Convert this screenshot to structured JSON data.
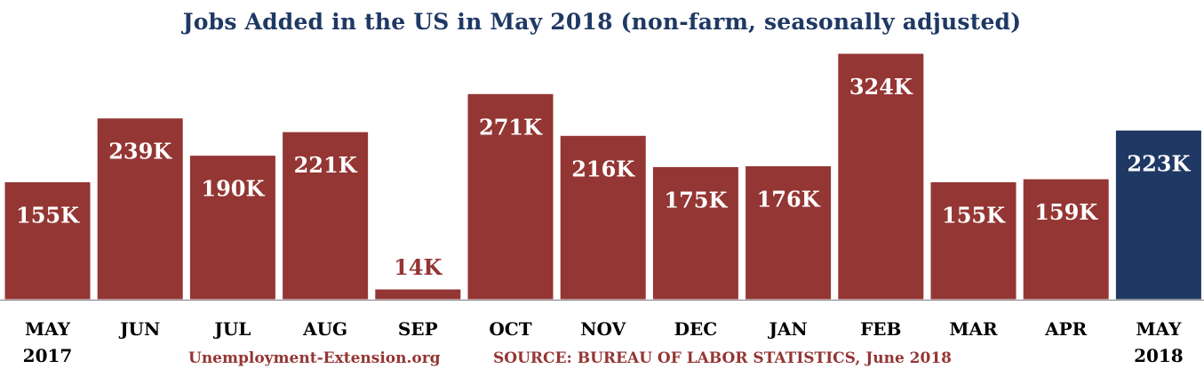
{
  "colors": {
    "bar": "#943634",
    "highlight": "#1f3864",
    "label_dark": "#943634",
    "axis": "#7f7f7f"
  },
  "footer": {
    "site": "Unemployment-Extension.org",
    "source": "SOURCE: BUREAU OF LABOR STATISTICS, June 2018"
  },
  "chart_data": {
    "type": "bar",
    "title": "Jobs Added in the US in May 2018 (non-farm, seasonally adjusted)",
    "xlabel": "",
    "ylabel": "",
    "categories": [
      [
        "MAY",
        "2017"
      ],
      [
        "JUN"
      ],
      [
        "JUL"
      ],
      [
        "AUG"
      ],
      [
        "SEP"
      ],
      [
        "OCT"
      ],
      [
        "NOV"
      ],
      [
        "DEC"
      ],
      [
        "JAN"
      ],
      [
        "FEB"
      ],
      [
        "MAR"
      ],
      [
        "APR"
      ],
      [
        "MAY",
        "2018"
      ]
    ],
    "values": [
      155,
      239,
      190,
      221,
      14,
      271,
      216,
      175,
      176,
      324,
      155,
      159,
      223
    ],
    "data_labels": [
      "155K",
      "239K",
      "190K",
      "221K",
      "14K",
      "271K",
      "216K",
      "175K",
      "176K",
      "324K",
      "155K",
      "159K",
      "223K"
    ],
    "highlight_index": 12,
    "ylim": [
      0,
      324
    ],
    "grid": false,
    "legend": "none"
  }
}
